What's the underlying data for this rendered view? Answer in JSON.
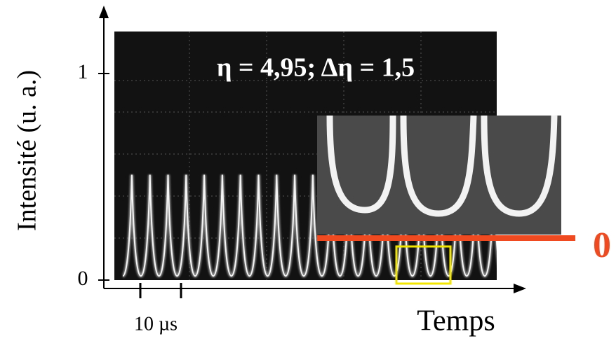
{
  "chart_data": {
    "type": "line",
    "y_label": "Intensité (u. a.)",
    "x_label": "Temps",
    "annotation": "η = 4,95; Δη = 1,5",
    "scale_label": "10 µs",
    "zero_label": "0",
    "ylim": [
      0,
      1.19
    ],
    "yticks": [
      0,
      1
    ],
    "color": "#f4f4f4",
    "values": [
      0.02,
      0.51,
      0.02,
      0.51,
      0.02,
      0.51,
      0.02,
      0.51,
      0.02,
      0.51,
      0.02,
      0.51,
      0.02,
      0.51,
      0.02,
      0.51,
      0.02,
      0.51,
      0.02,
      0.51,
      0.02,
      0.51,
      0.02,
      0.51,
      0.02,
      0.51,
      0.02,
      0.51,
      0.02,
      0.51,
      0.02,
      0.51,
      0.02,
      0.51,
      0.02,
      0.51,
      0.02,
      0.51,
      0.02,
      0.51,
      0.02,
      0.51,
      0.02
    ]
  }
}
